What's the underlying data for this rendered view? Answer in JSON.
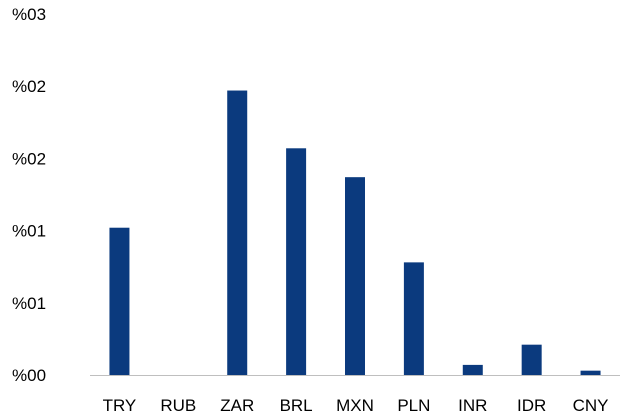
{
  "chart_data": {
    "type": "bar",
    "categories": [
      "TRY",
      "RUB",
      "ZAR",
      "BRL",
      "MXN",
      "PLN",
      "INR",
      "IDR",
      "CNY"
    ],
    "values": [
      1.02,
      0.0,
      1.97,
      1.57,
      1.37,
      0.78,
      0.07,
      0.21,
      0.03
    ],
    "y_tick_labels": [
      "%00",
      "%01",
      "%01",
      "%02",
      "%02",
      "%03"
    ],
    "y_tick_values": [
      0,
      0.5,
      1.0,
      1.5,
      2.0,
      2.5
    ],
    "ylim": [
      0,
      2.5
    ],
    "title": "",
    "xlabel": "",
    "ylabel": "",
    "grid": false,
    "legend": "none",
    "bar_color": "#0b3a7e",
    "axis_color": "#bfbfbf"
  }
}
